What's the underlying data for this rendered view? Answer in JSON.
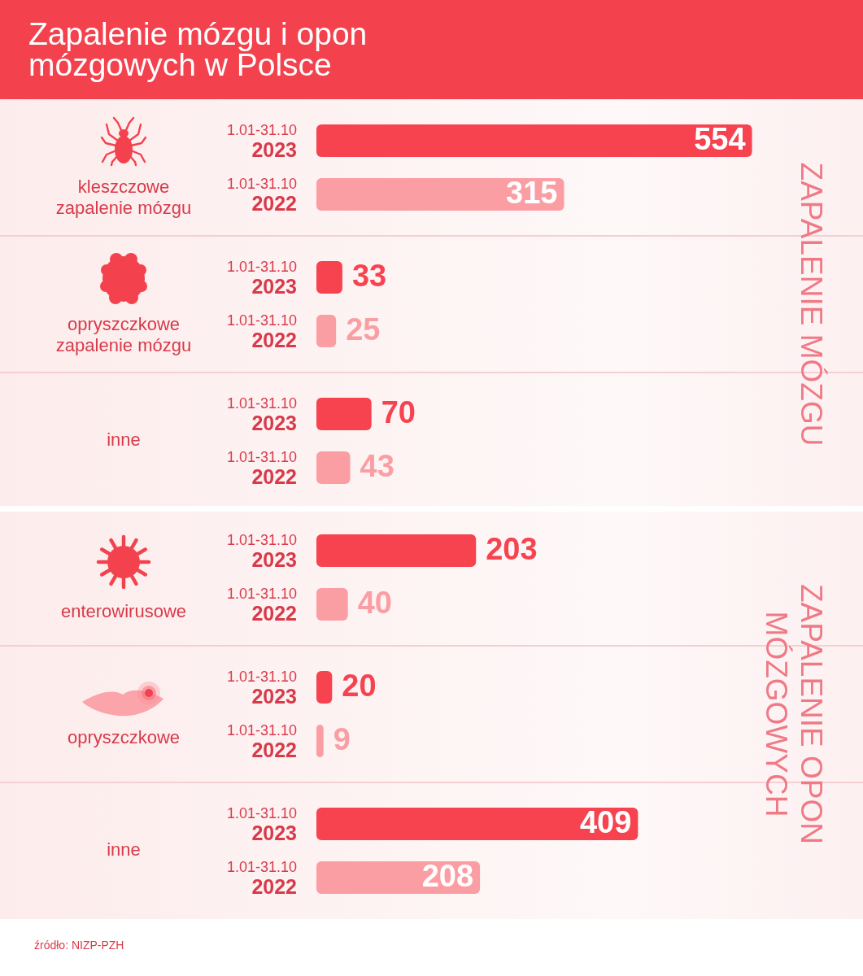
{
  "chart_data": {
    "type": "bar",
    "orientation": "horizontal",
    "title": "Zapalenie mózgu i opon mózgowych w Polsce",
    "categories": [
      "kleszczowe zapalenie mózgu",
      "opryszczkowe zapalenie mózgu",
      "inne",
      "enterowirusowe",
      "opryszczkowe",
      "inne"
    ],
    "series": [
      {
        "name": "1.01-31.10 2023",
        "color": "#f7434f",
        "values": [
          554,
          33,
          70,
          203,
          20,
          409
        ]
      },
      {
        "name": "1.01-31.10 2022",
        "color": "#fb9ea4",
        "values": [
          315,
          25,
          43,
          40,
          9,
          208
        ]
      }
    ],
    "data_labels": true,
    "tick_labels": "y",
    "annotations": [
      "ZAPALENIE MÓZGU",
      "ZAPALENIE OPON MÓZGOWYCH",
      "źródło: NIZP-PZH"
    ]
  }
}
